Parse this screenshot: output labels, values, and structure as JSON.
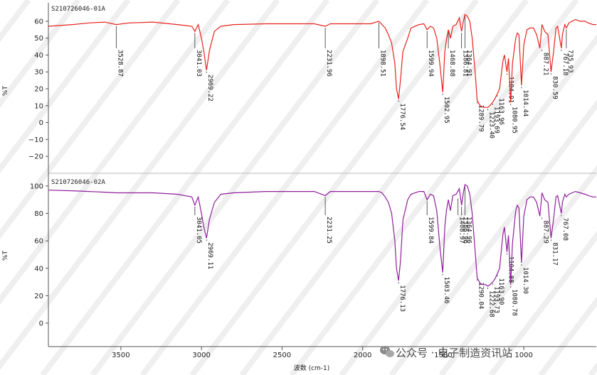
{
  "chart_data": [
    {
      "type": "line",
      "title": "S210726046-01A",
      "ylabel": "%T",
      "xlim": [
        3950,
        550
      ],
      "ylim": [
        -25,
        65
      ],
      "yticks": [
        60,
        50,
        40,
        30,
        20,
        10,
        0,
        -10,
        -20
      ],
      "color": "#e8221c",
      "x": [
        3950,
        3800,
        3700,
        3600,
        3529,
        3450,
        3300,
        3150,
        3060,
        3041,
        3020,
        3000,
        2985,
        2969,
        2950,
        2920,
        2880,
        2800,
        2600,
        2400,
        2300,
        2232,
        2200,
        2100,
        2000,
        1950,
        1899,
        1880,
        1860,
        1840,
        1820,
        1800,
        1790,
        1777,
        1765,
        1750,
        1720,
        1700,
        1650,
        1620,
        1600,
        1580,
        1560,
        1540,
        1520,
        1503,
        1490,
        1480,
        1468,
        1455,
        1440,
        1420,
        1400,
        1386,
        1375,
        1365,
        1350,
        1335,
        1320,
        1300,
        1289,
        1270,
        1250,
        1235,
        1223,
        1210,
        1193,
        1180,
        1164,
        1150,
        1130,
        1120,
        1104,
        1095,
        1081,
        1070,
        1050,
        1040,
        1030,
        1014,
        1000,
        980,
        960,
        940,
        920,
        900,
        887,
        870,
        850,
        831,
        815,
        800,
        790,
        767,
        760,
        745,
        736,
        720,
        700,
        680,
        650,
        620,
        600,
        570,
        550
      ],
      "y": [
        57,
        58,
        59,
        59.5,
        58,
        59,
        59.5,
        58,
        57,
        54,
        58,
        50,
        42,
        31,
        43,
        54,
        57,
        58,
        58.5,
        58.5,
        58.5,
        57,
        58.5,
        58.5,
        58.5,
        58.5,
        60,
        58,
        56,
        52,
        47,
        35,
        20,
        14,
        25,
        42,
        50,
        56,
        58,
        58.5,
        55,
        57,
        56,
        50,
        34,
        18,
        42,
        49,
        55,
        50,
        57,
        58,
        62,
        54,
        60,
        64,
        63,
        60,
        50,
        28,
        13,
        10,
        9,
        9,
        9,
        10,
        12,
        14,
        17,
        20,
        36,
        40,
        30,
        38,
        12,
        35,
        50,
        53,
        52,
        22,
        46,
        55,
        56,
        56,
        52,
        44,
        58,
        54,
        52,
        30,
        42,
        56,
        57,
        44,
        52,
        58,
        56,
        59,
        60,
        61,
        60,
        60,
        59,
        58,
        58
      ],
      "peaks": [
        {
          "label": "3528.87",
          "x": 3529,
          "tip": 58
        },
        {
          "label": "3041.03",
          "x": 3041,
          "tip": 54
        },
        {
          "label": "2969.22",
          "x": 2969,
          "tip": 31
        },
        {
          "label": "2231.96",
          "x": 2232,
          "tip": 57
        },
        {
          "label": "1898.51",
          "x": 1899,
          "tip": 60
        },
        {
          "label": "1776.54",
          "x": 1777,
          "tip": 14
        },
        {
          "label": "1599.94",
          "x": 1600,
          "tip": 55
        },
        {
          "label": "1502.95",
          "x": 1503,
          "tip": 18
        },
        {
          "label": "1468.88",
          "x": 1468,
          "tip": 55
        },
        {
          "label": "1386.81",
          "x": 1386,
          "tip": 54
        },
        {
          "label": "1364.91",
          "x": 1365,
          "tip": 64
        },
        {
          "label": "1289.79",
          "x": 1289,
          "tip": 13
        },
        {
          "label": "1223.40",
          "x": 1223,
          "tip": 9
        },
        {
          "label": "1193.69",
          "x": 1193,
          "tip": 12
        },
        {
          "label": "1163.96",
          "x": 1164,
          "tip": 17
        },
        {
          "label": "1104.91",
          "x": 1104,
          "tip": 30
        },
        {
          "label": "1080.95",
          "x": 1081,
          "tip": 12
        },
        {
          "label": "1014.44",
          "x": 1014,
          "tip": 22
        },
        {
          "label": "887.21",
          "x": 887,
          "tip": 44
        },
        {
          "label": "830.59",
          "x": 831,
          "tip": 30
        },
        {
          "label": "767.18",
          "x": 767,
          "tip": 44
        },
        {
          "label": "735.93",
          "x": 736,
          "tip": 56
        }
      ]
    },
    {
      "type": "line",
      "title": "S210726046-02A",
      "ylabel": "%T",
      "xlim": [
        3950,
        550
      ],
      "ylim": [
        -15,
        102
      ],
      "yticks": [
        100,
        80,
        60,
        40,
        20,
        0
      ],
      "color": "#8e1f9a",
      "x": [
        3950,
        3800,
        3700,
        3600,
        3529,
        3450,
        3300,
        3150,
        3060,
        3041,
        3020,
        3000,
        2985,
        2969,
        2950,
        2920,
        2880,
        2800,
        2600,
        2400,
        2300,
        2232,
        2200,
        2100,
        2000,
        1950,
        1899,
        1880,
        1860,
        1840,
        1820,
        1800,
        1790,
        1777,
        1765,
        1750,
        1720,
        1700,
        1650,
        1620,
        1600,
        1580,
        1560,
        1540,
        1520,
        1503,
        1490,
        1480,
        1468,
        1455,
        1440,
        1420,
        1400,
        1386,
        1375,
        1365,
        1350,
        1335,
        1320,
        1300,
        1289,
        1270,
        1250,
        1235,
        1223,
        1210,
        1193,
        1180,
        1164,
        1150,
        1130,
        1120,
        1104,
        1095,
        1081,
        1070,
        1050,
        1040,
        1030,
        1014,
        1000,
        980,
        960,
        940,
        920,
        900,
        887,
        870,
        850,
        831,
        815,
        800,
        790,
        767,
        760,
        745,
        736,
        720,
        700,
        680,
        650,
        620,
        600,
        570,
        550
      ],
      "y": [
        97,
        96.5,
        96,
        95.5,
        95,
        95,
        95,
        94,
        92,
        86,
        92,
        80,
        70,
        62,
        76,
        88,
        94,
        95,
        96,
        96,
        96,
        93,
        96,
        96,
        96,
        96,
        96,
        95,
        92,
        88,
        80,
        60,
        40,
        31,
        45,
        75,
        90,
        94,
        96,
        96,
        90,
        94,
        93,
        82,
        55,
        37,
        70,
        82,
        90,
        82,
        93,
        94,
        98,
        86,
        95,
        101,
        100,
        94,
        80,
        50,
        33,
        29,
        28,
        28,
        27,
        28,
        30,
        32,
        36,
        40,
        64,
        70,
        52,
        64,
        28,
        58,
        82,
        86,
        84,
        44,
        78,
        90,
        92,
        92,
        88,
        78,
        95,
        90,
        88,
        62,
        76,
        92,
        93,
        80,
        88,
        94,
        92,
        94,
        95,
        96,
        95,
        94,
        93,
        92,
        92
      ],
      "peaks": [
        {
          "label": "3041.05",
          "x": 3041,
          "tip": 86
        },
        {
          "label": "2969.11",
          "x": 2969,
          "tip": 62
        },
        {
          "label": "2231.25",
          "x": 2232,
          "tip": 93
        },
        {
          "label": "1776.13",
          "x": 1777,
          "tip": 31
        },
        {
          "label": "1599.84",
          "x": 1600,
          "tip": 90
        },
        {
          "label": "1503.46",
          "x": 1503,
          "tip": 37
        },
        {
          "label": "1408.97",
          "x": 1408,
          "tip": 92
        },
        {
          "label": "1386.96",
          "x": 1386,
          "tip": 86
        },
        {
          "label": "1364.96",
          "x": 1365,
          "tip": 101
        },
        {
          "label": "1290.04",
          "x": 1289,
          "tip": 33
        },
        {
          "label": "1222.68",
          "x": 1223,
          "tip": 27
        },
        {
          "label": "1193.73",
          "x": 1193,
          "tip": 30
        },
        {
          "label": "1163.90",
          "x": 1164,
          "tip": 36
        },
        {
          "label": "1104.88",
          "x": 1104,
          "tip": 52
        },
        {
          "label": "1080.78",
          "x": 1081,
          "tip": 28
        },
        {
          "label": "1014.30",
          "x": 1014,
          "tip": 44
        },
        {
          "label": "887.29",
          "x": 887,
          "tip": 78
        },
        {
          "label": "831.17",
          "x": 831,
          "tip": 62
        },
        {
          "label": "767.08",
          "x": 767,
          "tip": 80
        }
      ]
    }
  ],
  "x_axis": {
    "label": "波数 (cm-1)",
    "ticks": [
      3500,
      3000,
      2500,
      2000,
      1500,
      1000
    ]
  },
  "watermark": {
    "text": "公众号 · 电子制造资讯站",
    "icon": "wechat-icon"
  }
}
